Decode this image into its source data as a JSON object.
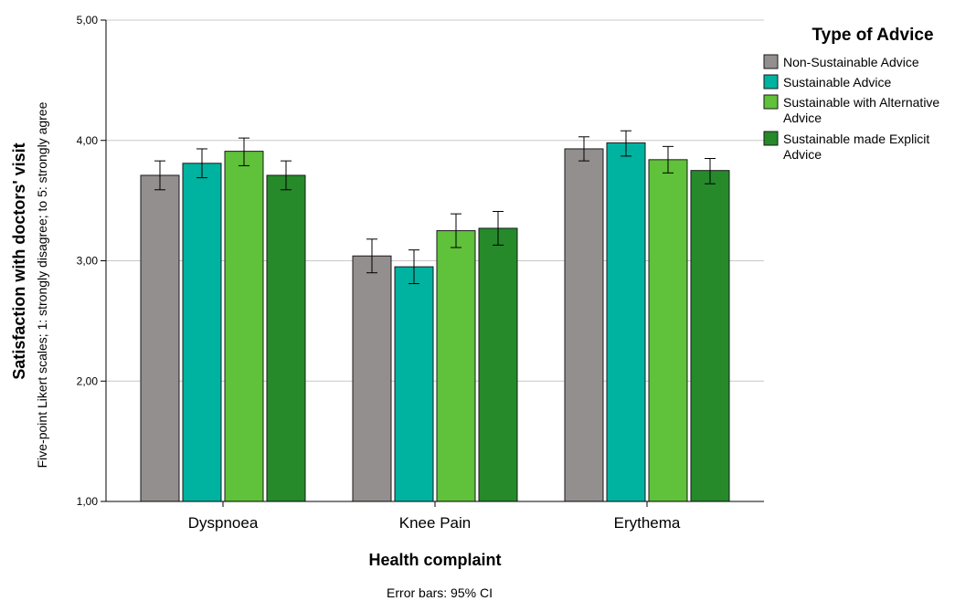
{
  "chart_data": {
    "type": "bar",
    "ylabel": "Satisfaction with doctors' visit",
    "ylabel_sub": "Five-point Likert scales; 1: strongly disagree; to 5: strongly agree",
    "xlabel": "Health complaint",
    "note": "Error bars: 95% CI",
    "legend_title": "Type of Advice",
    "legend_position": "right",
    "ylim": [
      1,
      5
    ],
    "yticks": [
      1,
      2,
      3,
      4,
      5
    ],
    "ytick_labels": [
      "1,00",
      "2,00",
      "3,00",
      "4,00",
      "5,00"
    ],
    "grid": true,
    "categories": [
      "Dyspnoea",
      "Knee Pain",
      "Erythema"
    ],
    "series": [
      {
        "name": "Non-Sustainable Advice",
        "name_lines": [
          "Non-Sustainable Advice"
        ],
        "color": "#928f8e",
        "values": [
          3.71,
          3.04,
          3.93
        ],
        "ci_low": [
          3.59,
          2.9,
          3.83
        ],
        "ci_high": [
          3.83,
          3.18,
          4.03
        ]
      },
      {
        "name": "Sustainable Advice",
        "name_lines": [
          "Sustainable Advice"
        ],
        "color": "#00b2a0",
        "values": [
          3.81,
          2.95,
          3.98
        ],
        "ci_low": [
          3.69,
          2.81,
          3.87
        ],
        "ci_high": [
          3.93,
          3.09,
          4.08
        ]
      },
      {
        "name": "Sustainable with Alternative Advice",
        "name_lines": [
          "Sustainable with Alternative",
          "Advice"
        ],
        "color": "#60c13a",
        "values": [
          3.91,
          3.25,
          3.84
        ],
        "ci_low": [
          3.79,
          3.11,
          3.73
        ],
        "ci_high": [
          4.02,
          3.39,
          3.95
        ]
      },
      {
        "name": "Sustainable made Explicit Advice",
        "name_lines": [
          "Sustainable made Explicit",
          "Advice"
        ],
        "color": "#268a2b",
        "values": [
          3.71,
          3.27,
          3.75
        ],
        "ci_low": [
          3.59,
          3.13,
          3.64
        ],
        "ci_high": [
          3.83,
          3.41,
          3.85
        ]
      }
    ]
  }
}
